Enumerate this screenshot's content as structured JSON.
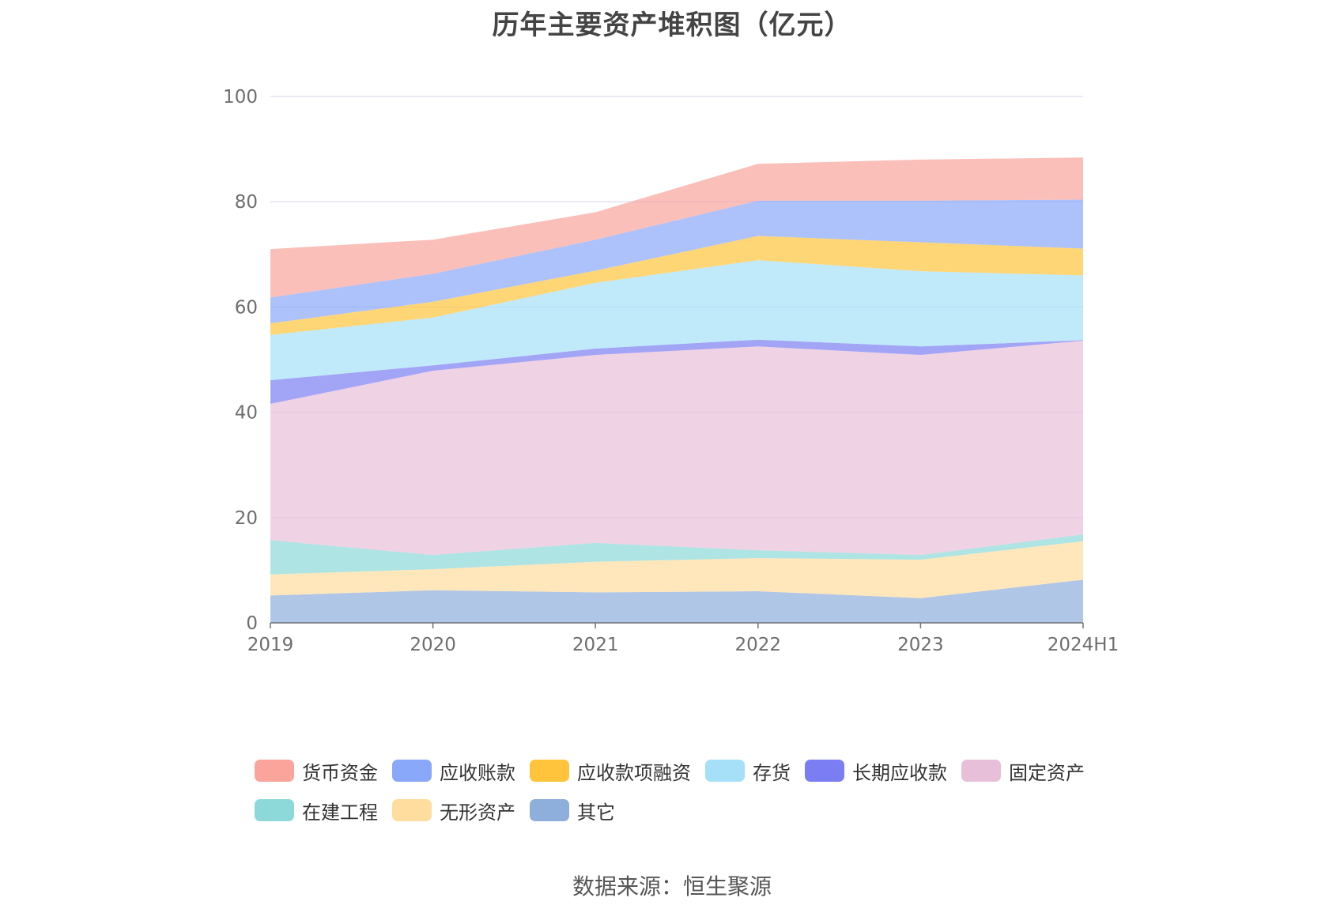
{
  "chart_data": {
    "type": "area",
    "stacked": true,
    "title": "历年主要资产堆积图（亿元）",
    "source": "数据来源：恒生聚源",
    "categories": [
      "2019",
      "2020",
      "2021",
      "2022",
      "2023",
      "2024H1"
    ],
    "ylim": [
      0,
      100
    ],
    "yticks": [
      "0",
      "20",
      "40",
      "60",
      "80",
      "100"
    ],
    "grid": true,
    "legend_position": "bottom",
    "series": [
      {
        "name": "其它",
        "color": "#8eaedb",
        "values": [
          5.2,
          6.2,
          5.8,
          6.0,
          4.7,
          8.2
        ]
      },
      {
        "name": "无形资产",
        "color": "#ffdd9e",
        "values": [
          4.0,
          4.0,
          5.8,
          6.3,
          7.3,
          7.3
        ]
      },
      {
        "name": "在建工程",
        "color": "#8dd9d9",
        "values": [
          6.5,
          2.7,
          3.6,
          1.5,
          0.9,
          1.3
        ]
      },
      {
        "name": "固定资产",
        "color": "#e8bfd9",
        "values": [
          25.9,
          35.0,
          35.7,
          38.7,
          38.0,
          36.8
        ]
      },
      {
        "name": "长期应收款",
        "color": "#7b7ef2",
        "values": [
          4.5,
          1.0,
          1.2,
          1.3,
          1.6,
          0.1
        ]
      },
      {
        "name": "存货",
        "color": "#a5dff8",
        "values": [
          8.6,
          9.1,
          12.5,
          15.1,
          14.3,
          12.3
        ]
      },
      {
        "name": "应收款项融资",
        "color": "#ffc43b",
        "values": [
          2.2,
          3.0,
          2.3,
          4.6,
          5.5,
          5.1
        ]
      },
      {
        "name": "应收账款",
        "color": "#8aa8fa",
        "values": [
          4.9,
          5.3,
          5.9,
          6.7,
          7.9,
          9.3
        ]
      },
      {
        "name": "货币资金",
        "color": "#faa49c",
        "values": [
          9.2,
          6.5,
          5.2,
          7.0,
          7.8,
          8.0
        ]
      }
    ]
  },
  "legend": {
    "items": [
      {
        "label": "货币资金",
        "color": "#faa49c"
      },
      {
        "label": "应收账款",
        "color": "#8aa8fa"
      },
      {
        "label": "应收款项融资",
        "color": "#ffc43b"
      },
      {
        "label": "存货",
        "color": "#a5dff8"
      },
      {
        "label": "长期应收款",
        "color": "#7b7ef2"
      },
      {
        "label": "固定资产",
        "color": "#e8bfd9"
      },
      {
        "label": "在建工程",
        "color": "#8dd9d9"
      },
      {
        "label": "无形资产",
        "color": "#ffdd9e"
      },
      {
        "label": "其它",
        "color": "#8eaedb"
      }
    ]
  }
}
